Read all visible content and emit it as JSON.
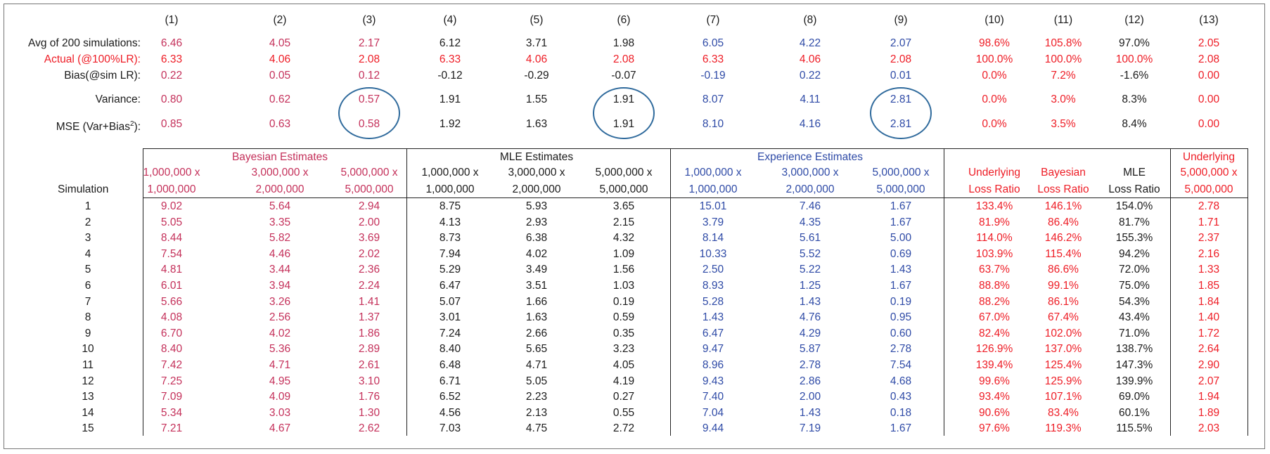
{
  "colors": {
    "bayesian": "#c4305a",
    "actual": "#ee1c25",
    "mle": "#1a1a1a",
    "experience": "#2e4aa6",
    "circle": "#2f6a9c"
  },
  "column_numbers": [
    "(1)",
    "(2)",
    "(3)",
    "(4)",
    "(5)",
    "(6)",
    "(7)",
    "(8)",
    "(9)",
    "(10)",
    "(11)",
    "(12)",
    "(13)"
  ],
  "summary": [
    {
      "label": "Avg of 200 simulations:",
      "values": [
        "6.46",
        "4.05",
        "2.17",
        "6.12",
        "3.71",
        "1.98",
        "6.05",
        "4.22",
        "2.07",
        "98.6%",
        "105.8%",
        "97.0%",
        "2.05"
      ]
    },
    {
      "label": "Actual (@100%LR):",
      "values": [
        "6.33",
        "4.06",
        "2.08",
        "6.33",
        "4.06",
        "2.08",
        "6.33",
        "4.06",
        "2.08",
        "100.0%",
        "100.0%",
        "100.0%",
        "2.08"
      ]
    },
    {
      "label": "Bias(@sim LR):",
      "values": [
        "0.22",
        "0.05",
        "0.12",
        "-0.12",
        "-0.29",
        "-0.07",
        "-0.19",
        "0.22",
        "0.01",
        "0.0%",
        "7.2%",
        "-1.6%",
        "0.00"
      ]
    },
    {
      "label": "Variance:",
      "values": [
        "0.80",
        "0.62",
        "0.57",
        "1.91",
        "1.55",
        "1.91",
        "8.07",
        "4.11",
        "2.81",
        "0.0%",
        "3.0%",
        "8.3%",
        "0.00"
      ]
    },
    {
      "label_prefix": "MSE (Var+Bias",
      "label_sup": "2",
      "label_suffix": "):",
      "values": [
        "0.85",
        "0.63",
        "0.58",
        "1.92",
        "1.63",
        "1.91",
        "8.10",
        "4.16",
        "2.81",
        "0.0%",
        "3.5%",
        "8.4%",
        "0.00"
      ]
    }
  ],
  "group_headers": {
    "bayesian": "Bayesian Estimates",
    "mle": "MLE Estimates",
    "experience": "Experience Estimates",
    "underlying_top": "Underlying"
  },
  "column_headers": [
    [
      "1,000,000 x",
      "1,000,000"
    ],
    [
      "3,000,000 x",
      "2,000,000"
    ],
    [
      "5,000,000 x",
      "5,000,000"
    ],
    [
      "1,000,000 x",
      "1,000,000"
    ],
    [
      "3,000,000 x",
      "2,000,000"
    ],
    [
      "5,000,000 x",
      "5,000,000"
    ],
    [
      "1,000,000 x",
      "1,000,000"
    ],
    [
      "3,000,000 x",
      "2,000,000"
    ],
    [
      "5,000,000 x",
      "5,000,000"
    ],
    [
      "Underlying",
      "Loss Ratio"
    ],
    [
      "Bayesian",
      "Loss Ratio"
    ],
    [
      "MLE",
      "Loss Ratio"
    ],
    [
      "5,000,000 x",
      "5,000,000"
    ]
  ],
  "simulation_label": "Simulation",
  "rows": [
    {
      "sim": "1",
      "values": [
        "9.02",
        "5.64",
        "2.94",
        "8.75",
        "5.93",
        "3.65",
        "15.01",
        "7.46",
        "1.67",
        "133.4%",
        "146.1%",
        "154.0%",
        "2.78"
      ]
    },
    {
      "sim": "2",
      "values": [
        "5.05",
        "3.35",
        "2.00",
        "4.13",
        "2.93",
        "2.15",
        "3.79",
        "4.35",
        "1.67",
        "81.9%",
        "86.4%",
        "81.7%",
        "1.71"
      ]
    },
    {
      "sim": "3",
      "values": [
        "8.44",
        "5.82",
        "3.69",
        "8.73",
        "6.38",
        "4.32",
        "8.14",
        "5.61",
        "5.00",
        "114.0%",
        "146.2%",
        "155.3%",
        "2.37"
      ]
    },
    {
      "sim": "4",
      "values": [
        "7.54",
        "4.46",
        "2.02",
        "7.94",
        "4.02",
        "1.09",
        "10.33",
        "5.52",
        "0.69",
        "103.9%",
        "115.4%",
        "94.2%",
        "2.16"
      ]
    },
    {
      "sim": "5",
      "values": [
        "4.81",
        "3.44",
        "2.36",
        "5.29",
        "3.49",
        "1.56",
        "2.50",
        "5.22",
        "1.43",
        "63.7%",
        "86.6%",
        "72.0%",
        "1.33"
      ]
    },
    {
      "sim": "6",
      "values": [
        "6.01",
        "3.94",
        "2.24",
        "6.47",
        "3.51",
        "1.03",
        "8.93",
        "1.25",
        "1.67",
        "88.8%",
        "99.1%",
        "75.0%",
        "1.85"
      ]
    },
    {
      "sim": "7",
      "values": [
        "5.66",
        "3.26",
        "1.41",
        "5.07",
        "1.66",
        "0.19",
        "5.28",
        "1.43",
        "0.19",
        "88.2%",
        "86.1%",
        "54.3%",
        "1.84"
      ]
    },
    {
      "sim": "8",
      "values": [
        "4.08",
        "2.56",
        "1.37",
        "3.01",
        "1.63",
        "0.59",
        "1.43",
        "4.76",
        "0.95",
        "67.0%",
        "67.4%",
        "43.4%",
        "1.40"
      ]
    },
    {
      "sim": "9",
      "values": [
        "6.70",
        "4.02",
        "1.86",
        "7.24",
        "2.66",
        "0.35",
        "6.47",
        "4.29",
        "0.60",
        "82.4%",
        "102.0%",
        "71.0%",
        "1.72"
      ]
    },
    {
      "sim": "10",
      "values": [
        "8.40",
        "5.36",
        "2.89",
        "8.40",
        "5.65",
        "3.23",
        "9.47",
        "5.87",
        "2.78",
        "126.9%",
        "137.0%",
        "138.7%",
        "2.64"
      ]
    },
    {
      "sim": "11",
      "values": [
        "7.42",
        "4.71",
        "2.61",
        "6.48",
        "4.71",
        "4.05",
        "8.96",
        "2.78",
        "7.54",
        "139.4%",
        "125.4%",
        "147.3%",
        "2.90"
      ]
    },
    {
      "sim": "12",
      "values": [
        "7.25",
        "4.95",
        "3.10",
        "6.71",
        "5.05",
        "4.19",
        "9.43",
        "2.86",
        "4.68",
        "99.6%",
        "125.9%",
        "139.9%",
        "2.07"
      ]
    },
    {
      "sim": "13",
      "values": [
        "7.09",
        "4.09",
        "1.76",
        "6.52",
        "2.23",
        "0.27",
        "7.40",
        "2.00",
        "0.43",
        "93.4%",
        "107.1%",
        "69.0%",
        "1.94"
      ]
    },
    {
      "sim": "14",
      "values": [
        "5.34",
        "3.03",
        "1.30",
        "4.56",
        "2.13",
        "0.55",
        "7.04",
        "1.43",
        "0.18",
        "90.6%",
        "83.4%",
        "60.1%",
        "1.89"
      ]
    },
    {
      "sim": "15",
      "values": [
        "7.21",
        "4.67",
        "2.62",
        "7.03",
        "4.75",
        "2.72",
        "9.44",
        "7.19",
        "1.67",
        "97.6%",
        "119.3%",
        "115.5%",
        "2.03"
      ]
    }
  ]
}
